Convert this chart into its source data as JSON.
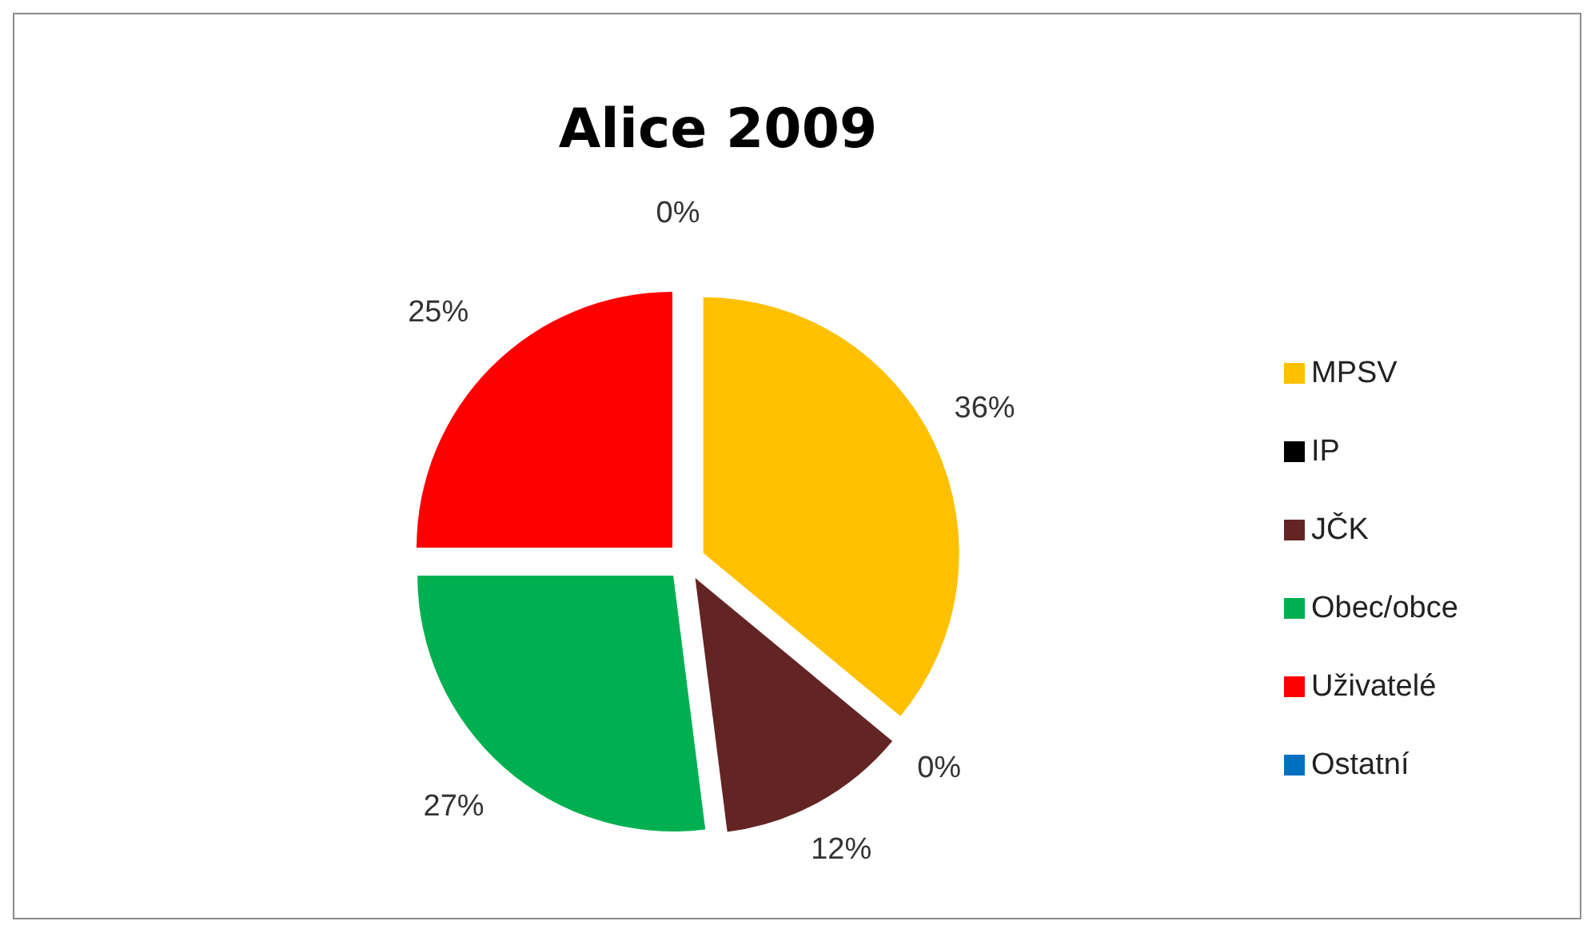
{
  "chart_data": {
    "type": "pie",
    "title": "Alice 2009",
    "categories": [
      "MPSV",
      "IP",
      "JČK",
      "Obec/obce",
      "Uživatelé",
      "Ostatní"
    ],
    "values": [
      36,
      0,
      12,
      27,
      25,
      0
    ],
    "value_labels": [
      "36%",
      "0%",
      "12%",
      "27%",
      "25%",
      "0%"
    ],
    "colors": [
      "#ffc000",
      "#000000",
      "#632523",
      "#00b050",
      "#ff0000",
      "#0070c0"
    ],
    "legend": "right"
  }
}
